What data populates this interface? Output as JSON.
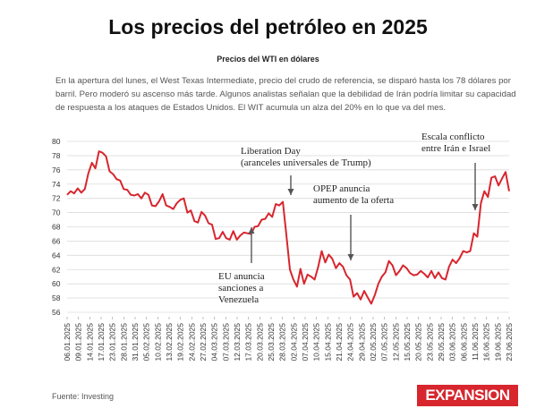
{
  "title": "Los precios del petróleo en 2025",
  "subtitle": "Precios del WTI en dólares",
  "description": "En la apertura del lunes, el West Texas Intermediate, precio del crudo de referencia, se disparó hasta los 78 dólares por barril. Pero moderó su ascenso más tarde. Algunos analistas señalan que la debilidad de Irán podría limitar su capacidad de respuesta a los ataques de Estados Unidos. El WIT acumula un alza del 20% en lo que va del mes.",
  "source": "Fuente: Investing",
  "brand": {
    "name": "EXPANSION",
    "color": "#d7262e"
  },
  "chart_data": {
    "type": "line",
    "title": "Los precios del petróleo en 2025",
    "subtitle": "Precios del WTI en dólares",
    "ylim": [
      56,
      80
    ],
    "yticks": [
      "80",
      "78",
      "76",
      "74",
      "72",
      "70",
      "68",
      "66",
      "64",
      "62",
      "60",
      "58",
      "56"
    ],
    "xticks": [
      "06.01.2025",
      "09.01.2025",
      "14.01.2025",
      "17.01.2025",
      "23.01.2025",
      "28.01.2025",
      "31.01.2025",
      "05.02.2025",
      "10.02.2025",
      "13.02.2025",
      "19.02.2025",
      "24.02.2025",
      "27.02.2025",
      "04.03.2025",
      "07.03.2025",
      "12.03.2025",
      "17.03.2025",
      "20.03.2025",
      "25.03.2025",
      "28.03.2025",
      "02.04.2025",
      "07.04.2025",
      "10.04.2025",
      "15.04.2025",
      "21.04.2025",
      "24.04.2025",
      "29.04.2025",
      "02.05.2025",
      "07.05.2025",
      "12.05.2025",
      "15.05.2025",
      "20.05.2025",
      "23.05.2025",
      "29.05.2025",
      "03.06.2025",
      "06.06.2025",
      "11.06.2025",
      "16.06.2025",
      "19.06.2025",
      "23.06.2025"
    ],
    "grid": true,
    "line_color": "#d7262e",
    "series": [
      {
        "values": [
          72.5,
          73.0,
          72.7,
          73.4,
          72.8,
          73.3,
          75.5,
          77.0,
          76.2,
          78.6,
          78.4,
          77.9,
          75.8,
          75.4,
          74.7,
          74.5,
          73.3,
          73.2,
          72.5,
          72.4,
          72.6,
          72.0,
          72.8,
          72.5,
          71.0,
          70.9,
          71.6,
          72.6,
          71.0,
          70.8,
          70.5,
          71.3,
          71.8,
          72.0,
          70.0,
          70.3,
          68.8,
          68.6,
          70.1,
          69.6,
          68.5,
          68.3,
          66.3,
          66.4,
          67.3,
          66.4,
          66.2,
          67.4,
          66.2,
          66.8,
          67.2,
          67.1,
          67.0,
          68.0,
          68.1,
          69.0,
          69.1,
          69.9,
          69.4,
          71.2,
          71.0,
          71.5,
          66.9,
          62.0,
          60.6,
          59.6,
          62.1,
          60.0,
          61.3,
          61.0,
          60.6,
          62.4,
          64.6,
          63.0,
          64.1,
          63.5,
          62.2,
          62.9,
          62.4,
          61.2,
          60.6,
          58.2,
          58.7,
          57.8,
          59.0,
          58.1,
          57.2,
          58.4,
          60.0,
          61.0,
          61.6,
          63.2,
          62.6,
          61.2,
          61.8,
          62.6,
          62.2,
          61.5,
          61.2,
          61.3,
          61.8,
          61.4,
          60.9,
          61.8,
          60.8,
          61.6,
          60.8,
          60.6,
          62.4,
          63.4,
          62.9,
          63.6,
          64.6,
          64.4,
          64.6,
          67.1,
          66.6,
          71.3,
          73.0,
          72.2,
          74.9,
          75.1,
          73.8,
          74.8,
          75.7,
          73.0
        ]
      }
    ],
    "annotations": [
      {
        "lines": [
          "Liberation Day",
          "(aranceles universales de Trump)"
        ],
        "index": 61
      },
      {
        "lines": [
          "OPEP anuncia",
          "aumento de la oferta"
        ],
        "index": 79
      },
      {
        "lines": [
          "Escala conflicto",
          "entre Irán e Israel"
        ],
        "index": 120
      },
      {
        "lines": [
          "EU anuncia",
          "sanciones a",
          "Venezuela"
        ],
        "index": 50
      }
    ]
  }
}
